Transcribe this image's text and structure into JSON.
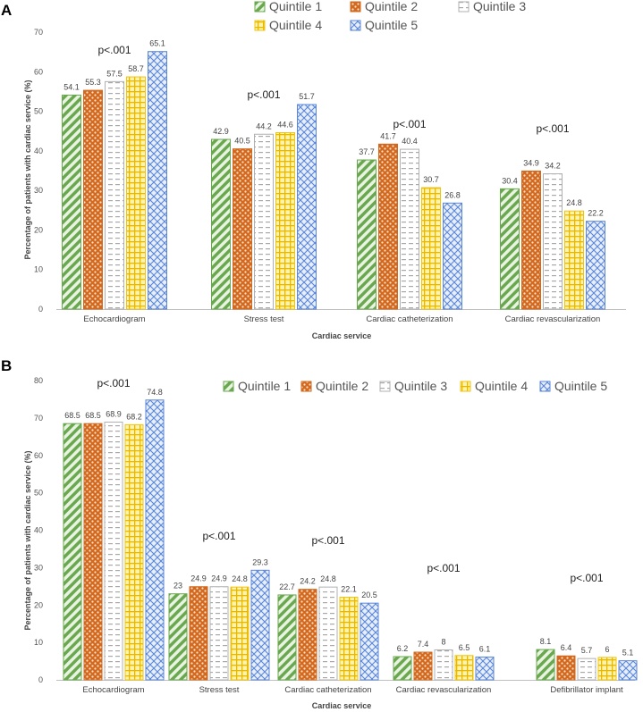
{
  "chart_data": [
    {
      "type": "bar",
      "panel_label": "A",
      "ylabel": "Percentage of patients with cardiac service (%)",
      "xlabel": "Cardiac service",
      "ylim": [
        0,
        70
      ],
      "yticks": [
        "0",
        "10",
        "20",
        "30",
        "40",
        "50",
        "60",
        "70"
      ],
      "categories": [
        "Echocardiogram",
        "Stress test",
        "Cardiac catheterization",
        "Cardiac revascularization"
      ],
      "pvalues": [
        "p<.001",
        "p<.001",
        "p<.001",
        "p<.001"
      ],
      "legend_position": "top-right",
      "series": [
        {
          "name": "Quintile 1",
          "values": [
            54.1,
            42.9,
            37.7,
            30.4
          ],
          "labels": [
            "54.1",
            "42.9",
            "37.7",
            "30.4"
          ]
        },
        {
          "name": "Quintile 2",
          "values": [
            55.3,
            40.5,
            41.7,
            34.9
          ],
          "labels": [
            "55.3",
            "40.5",
            "41.7",
            "34.9"
          ]
        },
        {
          "name": "Quintile 3",
          "values": [
            57.5,
            44.2,
            40.4,
            34.2
          ],
          "labels": [
            "57.5",
            "44.2",
            "40.4",
            "34.2"
          ]
        },
        {
          "name": "Quintile 4",
          "values": [
            58.7,
            44.6,
            30.7,
            24.8
          ],
          "labels": [
            "58.7",
            "44.6",
            "30.7",
            "24.8"
          ]
        },
        {
          "name": "Quintile 5",
          "values": [
            65.1,
            51.7,
            26.8,
            22.2
          ],
          "labels": [
            "65.1",
            "51.7",
            "26.8",
            "22.2"
          ]
        }
      ]
    },
    {
      "type": "bar",
      "panel_label": "B",
      "ylabel": "Percentage of patients with cardiac service (%)",
      "xlabel": "Cardiac service",
      "ylim": [
        0,
        80
      ],
      "yticks": [
        "0",
        "10",
        "20",
        "30",
        "40",
        "50",
        "60",
        "70",
        "80"
      ],
      "categories": [
        "Echocardiogram",
        "Stress test",
        "Cardiac catheterization",
        "Cardiac revascularization",
        "Defibrillator implant"
      ],
      "pvalues": [
        "p<.001",
        "p<.001",
        "p<.001",
        "p<.001",
        "p<.001"
      ],
      "legend_position": "top-right",
      "series": [
        {
          "name": "Quintile 1",
          "values": [
            68.5,
            23,
            22.7,
            6.2,
            8.1
          ],
          "labels": [
            "68.5",
            "23",
            "22.7",
            "6.2",
            "8.1"
          ]
        },
        {
          "name": "Quintile 2",
          "values": [
            68.5,
            24.9,
            24.2,
            7.4,
            6.4
          ],
          "labels": [
            "68.5",
            "24.9",
            "24.2",
            "7.4",
            "6.4"
          ]
        },
        {
          "name": "Quintile 3",
          "values": [
            68.9,
            24.9,
            24.8,
            8,
            5.7
          ],
          "labels": [
            "68.9",
            "24.9",
            "24.8",
            "8",
            "5.7"
          ]
        },
        {
          "name": "Quintile 4",
          "values": [
            68.2,
            24.8,
            22.1,
            6.5,
            6
          ],
          "labels": [
            "68.2",
            "24.8",
            "22.1",
            "6.5",
            "6"
          ]
        },
        {
          "name": "Quintile 5",
          "values": [
            74.8,
            29.3,
            20.5,
            6.1,
            5.1
          ],
          "labels": [
            "74.8",
            "29.3",
            "20.5",
            "6.1",
            "5.1"
          ]
        }
      ]
    }
  ],
  "series_colors": [
    "#6aa84f",
    "#d2691e",
    "#b0b0b0",
    "#f1c40f",
    "#5b86d6"
  ],
  "series_icons": [
    "diagonal-stripe-pattern",
    "dotted-pattern",
    "dashed-line-pattern",
    "grid-pattern",
    "crosshatch-pattern"
  ]
}
